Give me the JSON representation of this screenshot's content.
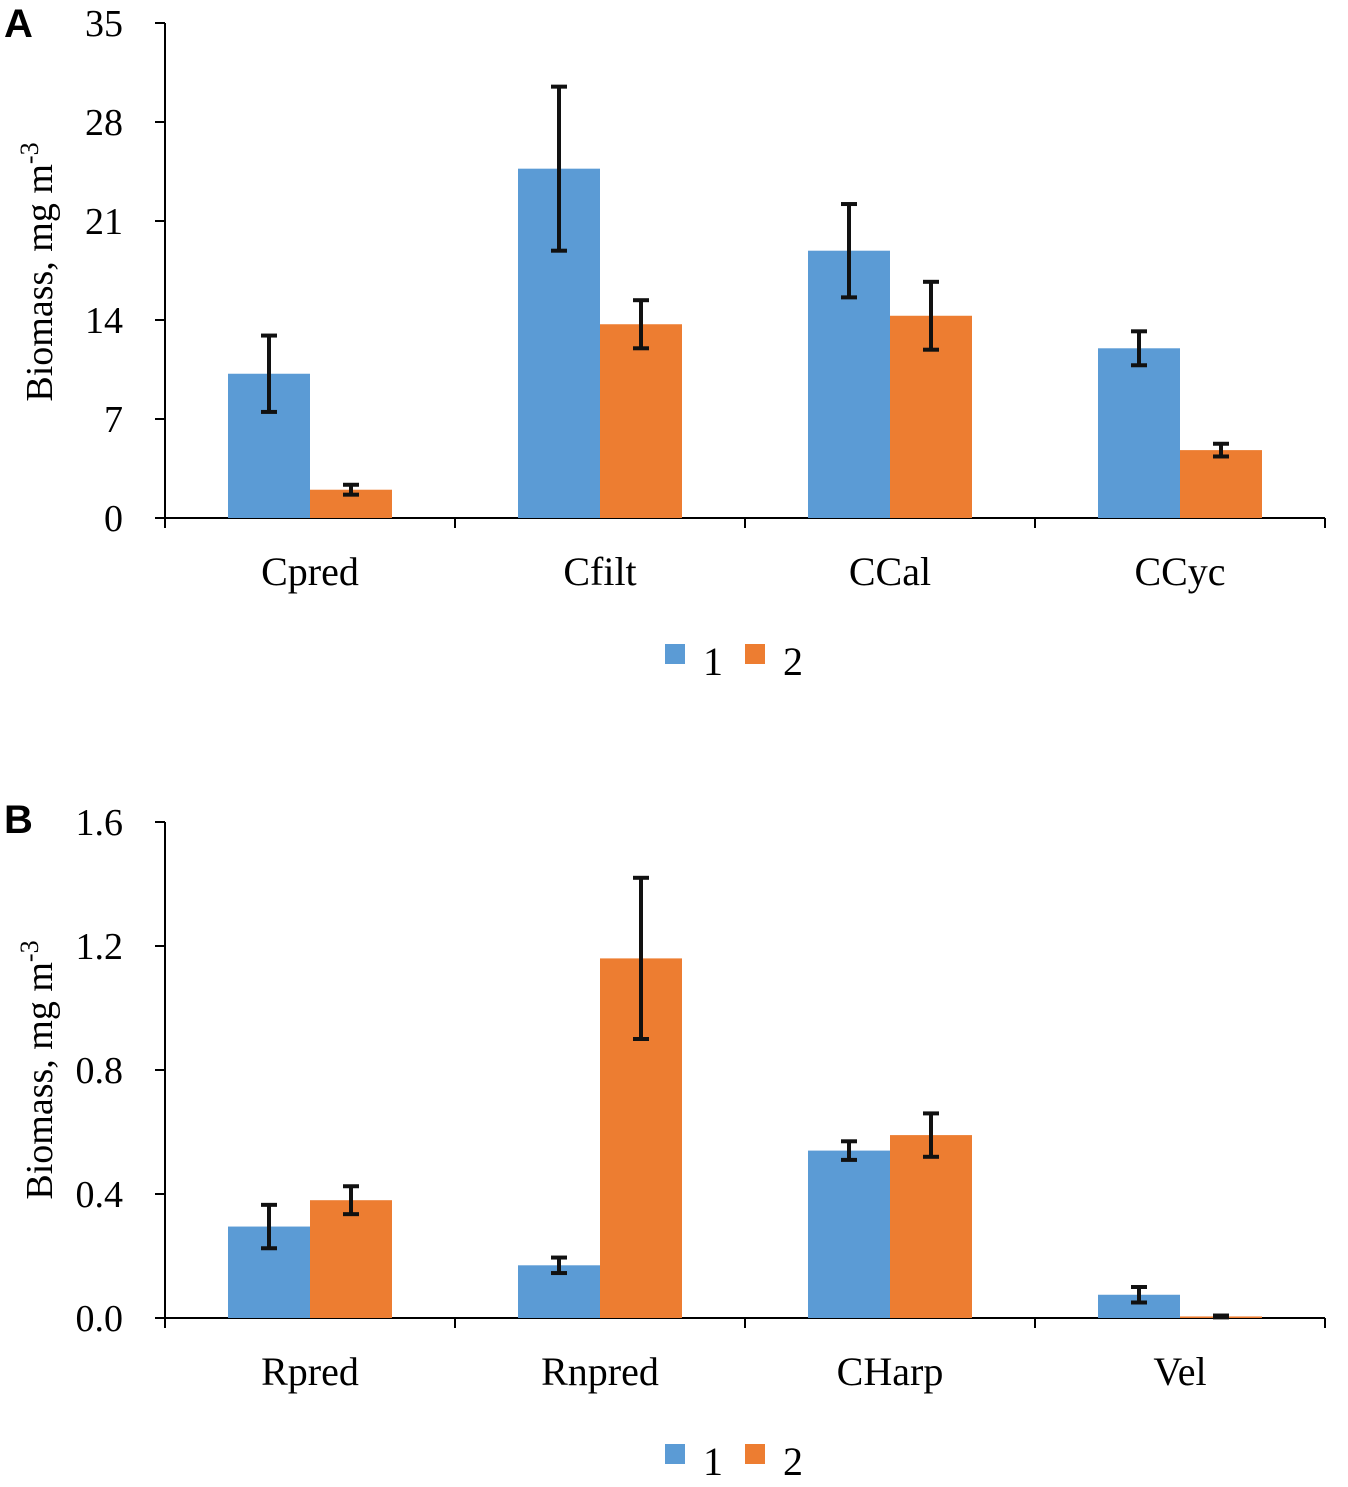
{
  "colors": {
    "series1": "#5b9bd5",
    "series2": "#ed7d31",
    "axis": "#000000",
    "errorbar": "#111111"
  },
  "chart_data": [
    {
      "panel": "A",
      "type": "bar",
      "categories": [
        "Cpred",
        "Cfilt",
        "CCal",
        "CCyc"
      ],
      "series": [
        {
          "name": "1",
          "values": [
            10.2,
            24.7,
            18.9,
            12.0
          ],
          "errors": [
            2.7,
            5.8,
            3.3,
            1.2
          ]
        },
        {
          "name": "2",
          "values": [
            2.0,
            13.7,
            14.3,
            4.8
          ],
          "errors": [
            0.35,
            1.7,
            2.4,
            0.45
          ]
        }
      ],
      "ylabel": "Biomass,  mg m-3",
      "ylim": [
        0,
        35
      ],
      "yticks": [
        "0",
        "7",
        "14",
        "21",
        "28",
        "35"
      ],
      "legend": [
        "1",
        "2"
      ],
      "legend_position": "bottom-center"
    },
    {
      "panel": "B",
      "type": "bar",
      "categories": [
        "Rpred",
        "Rnpred",
        "CHarp",
        "Vel"
      ],
      "series": [
        {
          "name": "1",
          "values": [
            0.295,
            0.17,
            0.54,
            0.075
          ],
          "errors": [
            0.07,
            0.025,
            0.03,
            0.025
          ]
        },
        {
          "name": "2",
          "values": [
            0.38,
            1.16,
            0.59,
            0.005
          ],
          "errors": [
            0.045,
            0.26,
            0.07,
            0.003
          ]
        }
      ],
      "ylabel": "Biomass,  mg m-3",
      "ylim": [
        0,
        1.6
      ],
      "yticks": [
        "0.0",
        "0.4",
        "0.8",
        "1.2",
        "1.6"
      ],
      "legend": [
        "1",
        "2"
      ],
      "legend_position": "bottom-center"
    }
  ]
}
